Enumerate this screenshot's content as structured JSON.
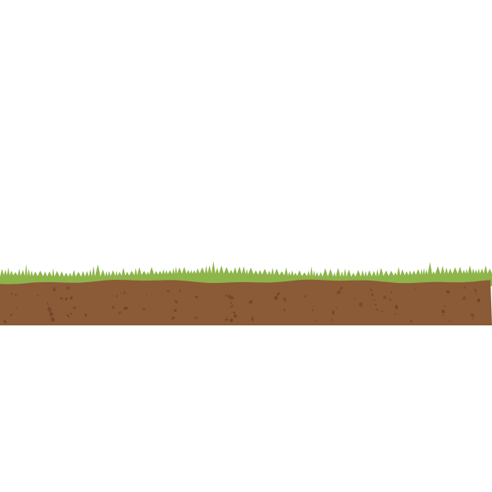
{
  "scene": {
    "background_color": "#ffffff",
    "grass_color": "#8db54a",
    "grass_highlight_color": "#9cc257",
    "soil_color": "#8b5a37",
    "pebble_color": "#6e4428",
    "icons": [
      "grass-strip",
      "soil-strip",
      "pebble"
    ]
  }
}
